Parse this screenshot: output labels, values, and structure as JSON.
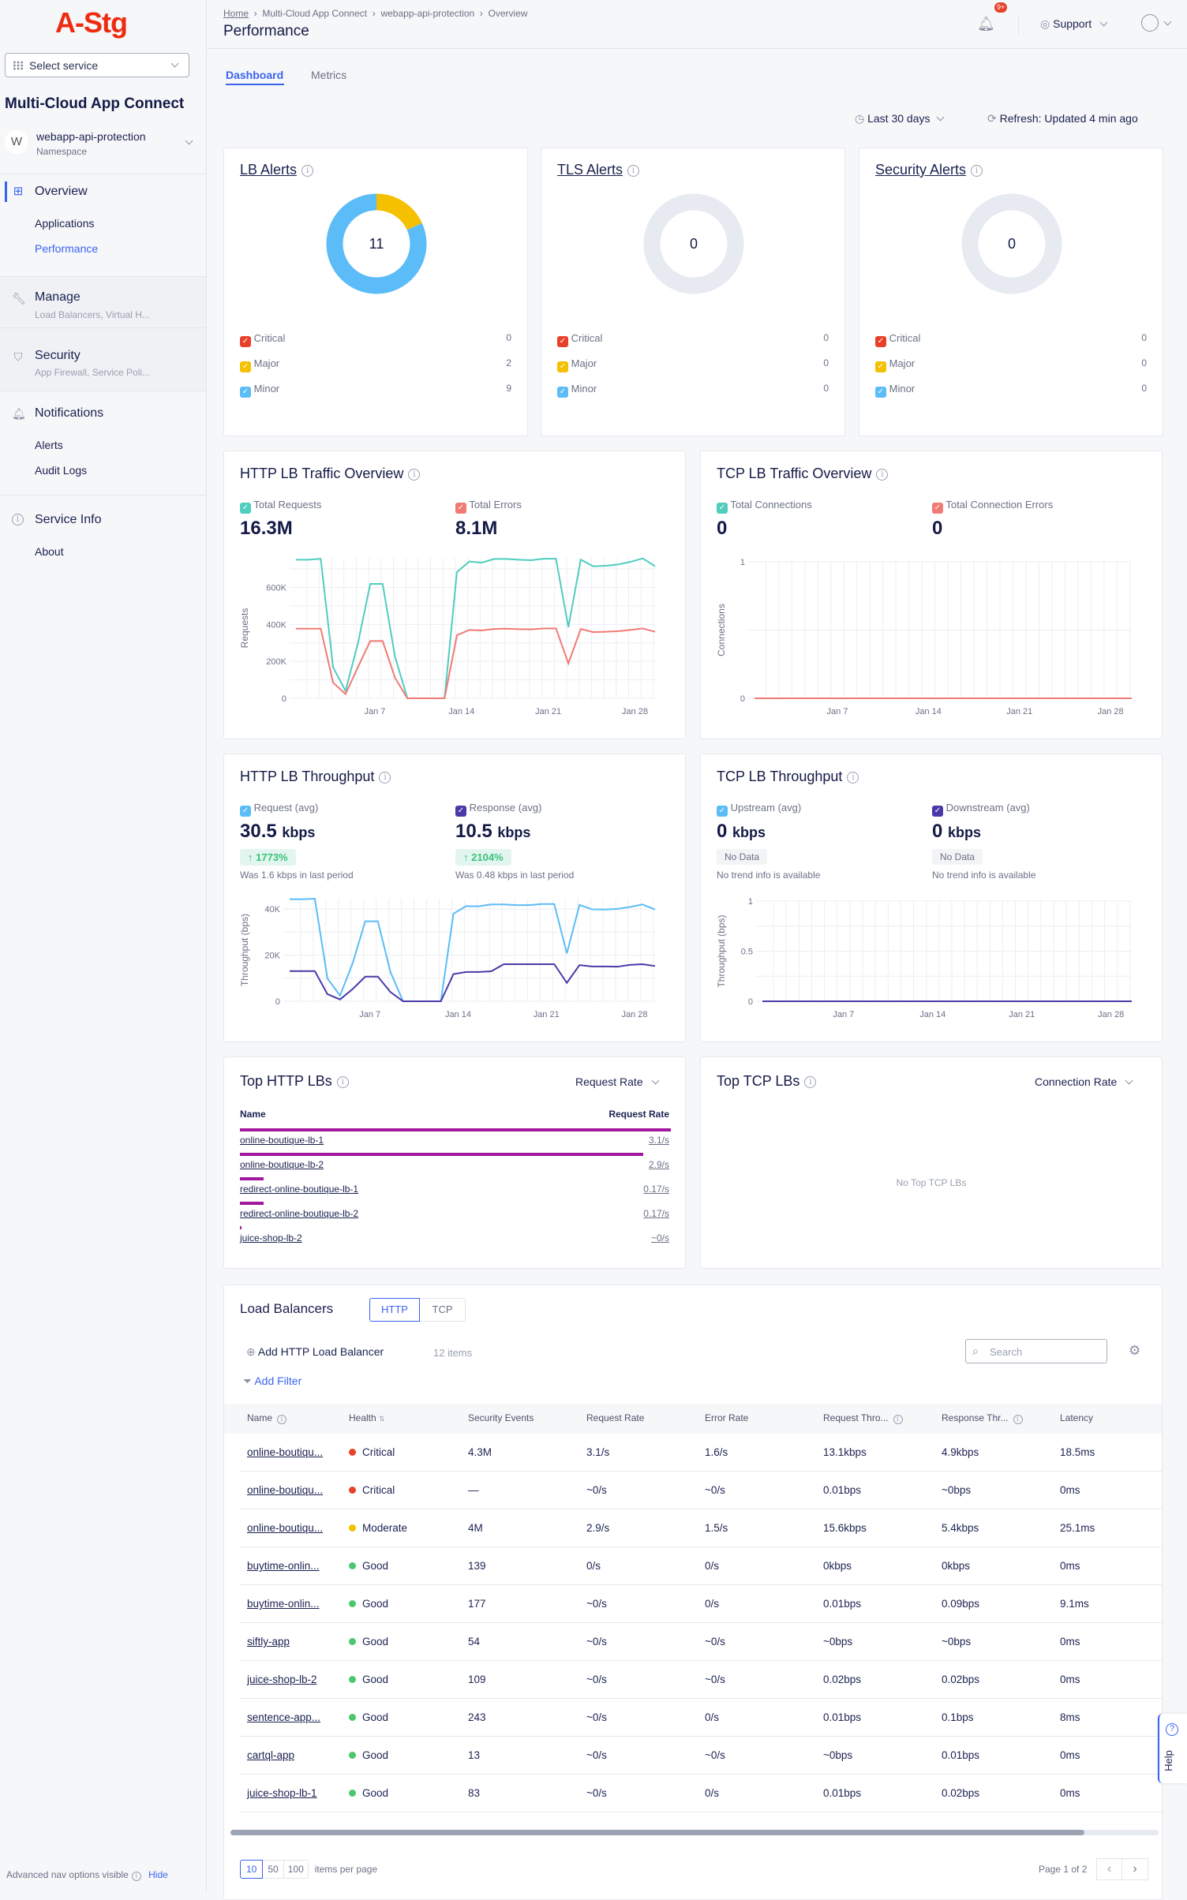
{
  "logo": "A-Stg",
  "sidebar": {
    "select_service": "Select service",
    "app_title": "Multi-Cloud App Connect",
    "namespace": {
      "avatar": "W",
      "name": "webapp-api-protection",
      "label": "Namespace"
    },
    "overview": {
      "label": "Overview",
      "items": [
        "Applications",
        "Performance"
      ],
      "active": "Performance"
    },
    "manage": {
      "label": "Manage",
      "desc": "Load Balancers, Virtual H..."
    },
    "security": {
      "label": "Security",
      "desc": "App Firewall, Service Poli..."
    },
    "notifications": {
      "label": "Notifications",
      "items": [
        "Alerts",
        "Audit Logs"
      ]
    },
    "service_info": {
      "label": "Service Info",
      "items": [
        "About"
      ]
    },
    "footer": {
      "text": "Advanced nav options visible",
      "hide": "Hide"
    }
  },
  "header": {
    "breadcrumb": [
      "Home",
      "Multi-Cloud App Connect",
      "webapp-api-protection",
      "Overview"
    ],
    "title": "Performance",
    "notif_badge": "9+",
    "support": "Support"
  },
  "tabs": [
    {
      "label": "Dashboard",
      "active": true
    },
    {
      "label": "Metrics",
      "active": false
    }
  ],
  "controls": {
    "time_range": "Last 30 days",
    "refresh": "Refresh: Updated 4 min ago"
  },
  "colors": {
    "critical": "#e8412a",
    "major": "#f5c000",
    "minor": "#5bbcf7",
    "accent": "#3b63f0",
    "requests": "#4fcdbf",
    "errors": "#f07a74",
    "request_tp": "#5bbcf7",
    "response_tp": "#4a3aa8",
    "topbar": "#a3169e",
    "empty_ring": "#e8eaf2"
  },
  "alerts": [
    {
      "title": "LB Alerts",
      "total": "11",
      "rows": [
        {
          "label": "Critical",
          "value": 0
        },
        {
          "label": "Major",
          "value": 2
        },
        {
          "label": "Minor",
          "value": 9
        }
      ]
    },
    {
      "title": "TLS Alerts",
      "total": "0",
      "rows": [
        {
          "label": "Critical",
          "value": 0
        },
        {
          "label": "Major",
          "value": 0
        },
        {
          "label": "Minor",
          "value": 0
        }
      ]
    },
    {
      "title": "Security Alerts",
      "total": "0",
      "rows": [
        {
          "label": "Critical",
          "value": 0
        },
        {
          "label": "Major",
          "value": 0
        },
        {
          "label": "Minor",
          "value": 0
        }
      ]
    }
  ],
  "http_traffic": {
    "title": "HTTP LB Traffic Overview",
    "m1": {
      "label": "Total Requests",
      "value": "16.3M"
    },
    "m2": {
      "label": "Total Errors",
      "value": "8.1M"
    }
  },
  "tcp_traffic": {
    "title": "TCP LB Traffic Overview",
    "m1": {
      "label": "Total Connections",
      "value": "0"
    },
    "m2": {
      "label": "Total Connection Errors",
      "value": "0"
    }
  },
  "http_tp": {
    "title": "HTTP LB Throughput",
    "m1": {
      "label": "Request (avg)",
      "value": "30.5",
      "unit": "kbps",
      "trend": "1773%",
      "note": "Was 1.6 kbps in last period"
    },
    "m2": {
      "label": "Response (avg)",
      "value": "10.5",
      "unit": "kbps",
      "trend": "2104%",
      "note": "Was 0.48 kbps in last period"
    }
  },
  "tcp_tp": {
    "title": "TCP LB Throughput",
    "m1": {
      "label": "Upstream (avg)",
      "value": "0",
      "unit": "kbps",
      "trend": "No Data",
      "note": "No trend info is available"
    },
    "m2": {
      "label": "Downstream (avg)",
      "value": "0",
      "unit": "kbps",
      "trend": "No Data",
      "note": "No trend info is available"
    }
  },
  "chart_data": [
    {
      "type": "line",
      "ylabel": "Requests",
      "ylim": [
        0,
        760000
      ],
      "yticks": [
        0,
        200000,
        400000,
        600000
      ],
      "ytick_labels": [
        "0",
        "200K",
        "400K",
        "600K"
      ],
      "xtick_labels": [
        "Jan 7",
        "Jan 14",
        "Jan 21",
        "Jan 28"
      ],
      "grid": true,
      "x": [
        "Jan 1",
        "Jan 2",
        "Jan 3",
        "Jan 4",
        "Jan 5",
        "Jan 6",
        "Jan 7",
        "Jan 8",
        "Jan 9",
        "Jan 10",
        "Jan 11",
        "Jan 12",
        "Jan 13",
        "Jan 14",
        "Jan 15",
        "Jan 16",
        "Jan 17",
        "Jan 18",
        "Jan 19",
        "Jan 20",
        "Jan 21",
        "Jan 22",
        "Jan 23",
        "Jan 24",
        "Jan 25",
        "Jan 26",
        "Jan 27",
        "Jan 28",
        "Jan 29",
        "Jan 30"
      ],
      "series": [
        {
          "name": "Total Requests",
          "color": "#4fcdbf",
          "values": [
            750000,
            750000,
            755000,
            168000,
            40000,
            296000,
            619000,
            619000,
            225000,
            0,
            0,
            0,
            0,
            683000,
            740000,
            734000,
            754000,
            754000,
            750000,
            747000,
            755000,
            755000,
            385000,
            750000,
            714000,
            717000,
            724000,
            738000,
            757000,
            715000
          ]
        },
        {
          "name": "Total Errors",
          "color": "#f07a74",
          "values": [
            377000,
            377000,
            377000,
            85000,
            23000,
            168000,
            310000,
            310000,
            111000,
            0,
            0,
            0,
            0,
            341000,
            370000,
            367000,
            375000,
            377000,
            374000,
            373000,
            378000,
            378000,
            189000,
            375000,
            358000,
            360000,
            363000,
            370000,
            378000,
            360000
          ]
        }
      ]
    },
    {
      "type": "line",
      "ylabel": "Connections",
      "ylim": [
        0,
        1
      ],
      "yticks": [
        0,
        1
      ],
      "ytick_labels": [
        "0",
        "1"
      ],
      "xtick_labels": [
        "Jan 7",
        "Jan 14",
        "Jan 21",
        "Jan 28"
      ],
      "grid": true,
      "x": [
        "Jan 1",
        "Jan 30"
      ],
      "series": [
        {
          "name": "Total Connections",
          "color": "#4fcdbf",
          "values": [
            0,
            0
          ]
        },
        {
          "name": "Total Connection Errors",
          "color": "#f07a74",
          "values": [
            0,
            0
          ]
        }
      ]
    },
    {
      "type": "line",
      "ylabel": "Throughput (bps)",
      "ylim": [
        0,
        44500
      ],
      "yticks": [
        0,
        20000,
        40000
      ],
      "ytick_labels": [
        "0",
        "20K",
        "40K"
      ],
      "xtick_labels": [
        "Jan 7",
        "Jan 14",
        "Jan 21",
        "Jan 28"
      ],
      "grid": true,
      "x": [
        "Jan 1",
        "Jan 2",
        "Jan 3",
        "Jan 4",
        "Jan 5",
        "Jan 6",
        "Jan 7",
        "Jan 8",
        "Jan 9",
        "Jan 10",
        "Jan 11",
        "Jan 12",
        "Jan 13",
        "Jan 14",
        "Jan 15",
        "Jan 16",
        "Jan 17",
        "Jan 18",
        "Jan 19",
        "Jan 20",
        "Jan 21",
        "Jan 22",
        "Jan 23",
        "Jan 24",
        "Jan 25",
        "Jan 26",
        "Jan 27",
        "Jan 28",
        "Jan 29",
        "Jan 30"
      ],
      "series": [
        {
          "name": "Request (avg)",
          "color": "#5bbcf7",
          "values": [
            44300,
            44300,
            44500,
            9900,
            2500,
            16500,
            34700,
            34700,
            12700,
            0,
            0,
            0,
            0,
            38000,
            41300,
            41200,
            42000,
            42000,
            41700,
            41700,
            42200,
            42200,
            20800,
            41800,
            39900,
            39800,
            40100,
            40900,
            42000,
            39800
          ]
        },
        {
          "name": "Response (avg)",
          "color": "#4a3aa8",
          "values": [
            13100,
            13100,
            13100,
            3100,
            800,
            5300,
            10700,
            10700,
            4000,
            0,
            0,
            0,
            0,
            11800,
            12700,
            12700,
            13000,
            16100,
            16100,
            16100,
            16100,
            16100,
            8000,
            15700,
            15100,
            15100,
            15000,
            15800,
            16100,
            15300
          ]
        }
      ]
    },
    {
      "type": "line",
      "ylabel": "Throughput (bps)",
      "ylim": [
        0,
        1
      ],
      "yticks": [
        0,
        0.5,
        1
      ],
      "ytick_labels": [
        "0",
        "0.5",
        "1"
      ],
      "xtick_labels": [
        "Jan 7",
        "Jan 14",
        "Jan 21",
        "Jan 28"
      ],
      "grid": true,
      "x": [
        "Jan 1",
        "Jan 30"
      ],
      "series": [
        {
          "name": "Upstream (avg)",
          "color": "#5bbcf7",
          "values": [
            0,
            0
          ]
        },
        {
          "name": "Downstream (avg)",
          "color": "#4a3aa8",
          "values": [
            0,
            0
          ]
        }
      ]
    }
  ],
  "top_http": {
    "title": "Top HTTP LBs",
    "sort": "Request Rate",
    "col_name": "Name",
    "col_rate": "Request Rate",
    "rows": [
      {
        "name": "online-boutique-lb-1",
        "rate": "3.1/s",
        "value": 3.1
      },
      {
        "name": "online-boutique-lb-2",
        "rate": "2.9/s",
        "value": 2.9
      },
      {
        "name": "redirect-online-boutique-lb-1",
        "rate": "0.17/s",
        "value": 0.17
      },
      {
        "name": "redirect-online-boutique-lb-2",
        "rate": "0.17/s",
        "value": 0.17
      },
      {
        "name": "juice-shop-lb-2",
        "rate": "~0/s",
        "value": 0.01
      }
    ]
  },
  "top_tcp": {
    "title": "Top TCP LBs",
    "sort": "Connection Rate",
    "empty": "No Top TCP LBs"
  },
  "lb": {
    "title": "Load Balancers",
    "toggle": [
      "HTTP",
      "TCP"
    ],
    "add": "Add HTTP Load Balancer",
    "count": "12 items",
    "search_placeholder": "Search",
    "add_filter": "Add Filter",
    "columns": [
      "Name",
      "Health",
      "Security Events",
      "Request Rate",
      "Error Rate",
      "Request Thro...",
      "Response Thr...",
      "Latency"
    ],
    "rows": [
      [
        "online-boutiqu...",
        "Critical",
        "4.3M",
        "3.1/s",
        "1.6/s",
        "13.1kbps",
        "4.9kbps",
        "18.5ms"
      ],
      [
        "online-boutiqu...",
        "Critical",
        "—",
        "~0/s",
        "~0/s",
        "0.01bps",
        "~0bps",
        "0ms"
      ],
      [
        "online-boutiqu...",
        "Moderate",
        "4M",
        "2.9/s",
        "1.5/s",
        "15.6kbps",
        "5.4kbps",
        "25.1ms"
      ],
      [
        "buytime-onlin...",
        "Good",
        "139",
        "0/s",
        "0/s",
        "0kbps",
        "0kbps",
        "0ms"
      ],
      [
        "buytime-onlin...",
        "Good",
        "177",
        "~0/s",
        "0/s",
        "0.01bps",
        "0.09bps",
        "9.1ms"
      ],
      [
        "siftly-app",
        "Good",
        "54",
        "~0/s",
        "~0/s",
        "~0bps",
        "~0bps",
        "0ms"
      ],
      [
        "juice-shop-lb-2",
        "Good",
        "109",
        "~0/s",
        "~0/s",
        "0.02bps",
        "0.02bps",
        "0ms"
      ],
      [
        "sentence-app...",
        "Good",
        "243",
        "~0/s",
        "0/s",
        "0.01bps",
        "0.1bps",
        "8ms"
      ],
      [
        "cartql-app",
        "Good",
        "13",
        "~0/s",
        "~0/s",
        "~0bps",
        "0.01bps",
        "0ms"
      ],
      [
        "juice-shop-lb-1",
        "Good",
        "83",
        "~0/s",
        "0/s",
        "0.01bps",
        "0.02bps",
        "0ms"
      ]
    ],
    "health_colors": {
      "Critical": "#e8412a",
      "Moderate": "#f5c000",
      "Good": "#4cc76e"
    },
    "page_sizes": [
      "10",
      "50",
      "100"
    ],
    "page_size_label": "items per page",
    "page": "Page 1 of 2",
    "scroll_fraction": 0.92
  },
  "help": "Help"
}
